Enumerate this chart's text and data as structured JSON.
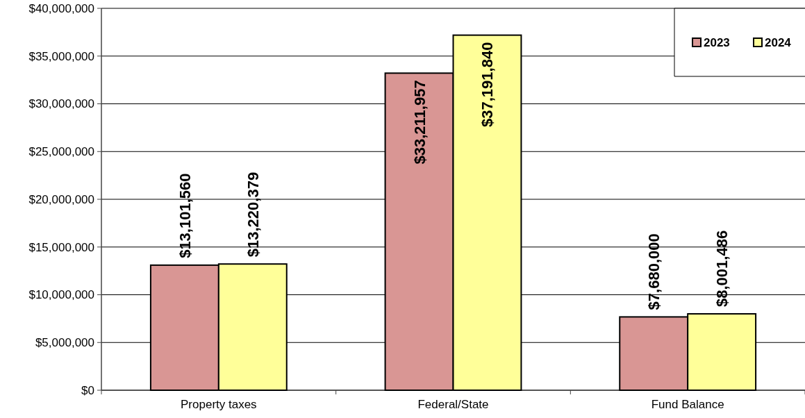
{
  "chart_data": {
    "type": "bar",
    "categories": [
      "Property taxes",
      "Federal/State",
      "Fund Balance"
    ],
    "series": [
      {
        "name": "2023",
        "color": "#d99694",
        "values": [
          13101560,
          33211957,
          7680000
        ],
        "value_labels": [
          "$13,101,560",
          "$33,211,957",
          "$7,680,000"
        ]
      },
      {
        "name": "2024",
        "color": "#ffff99",
        "values": [
          13220379,
          37191840,
          8001486
        ],
        "value_labels": [
          "$13,220,379",
          "$37,191,840",
          "$8,001,486"
        ]
      }
    ],
    "ylim": [
      0,
      40000000
    ],
    "yticks": [
      {
        "value": 0,
        "label": "$0"
      },
      {
        "value": 5000000,
        "label": "$5,000,000"
      },
      {
        "value": 10000000,
        "label": "$10,000,000"
      },
      {
        "value": 15000000,
        "label": "$15,000,000"
      },
      {
        "value": 20000000,
        "label": "$20,000,000"
      },
      {
        "value": 25000000,
        "label": "$25,000,000"
      },
      {
        "value": 30000000,
        "label": "$30,000,000"
      },
      {
        "value": 35000000,
        "label": "$35,000,000"
      },
      {
        "value": 40000000,
        "label": "$40,000,000"
      }
    ],
    "grid": "y",
    "legend": "top right"
  }
}
